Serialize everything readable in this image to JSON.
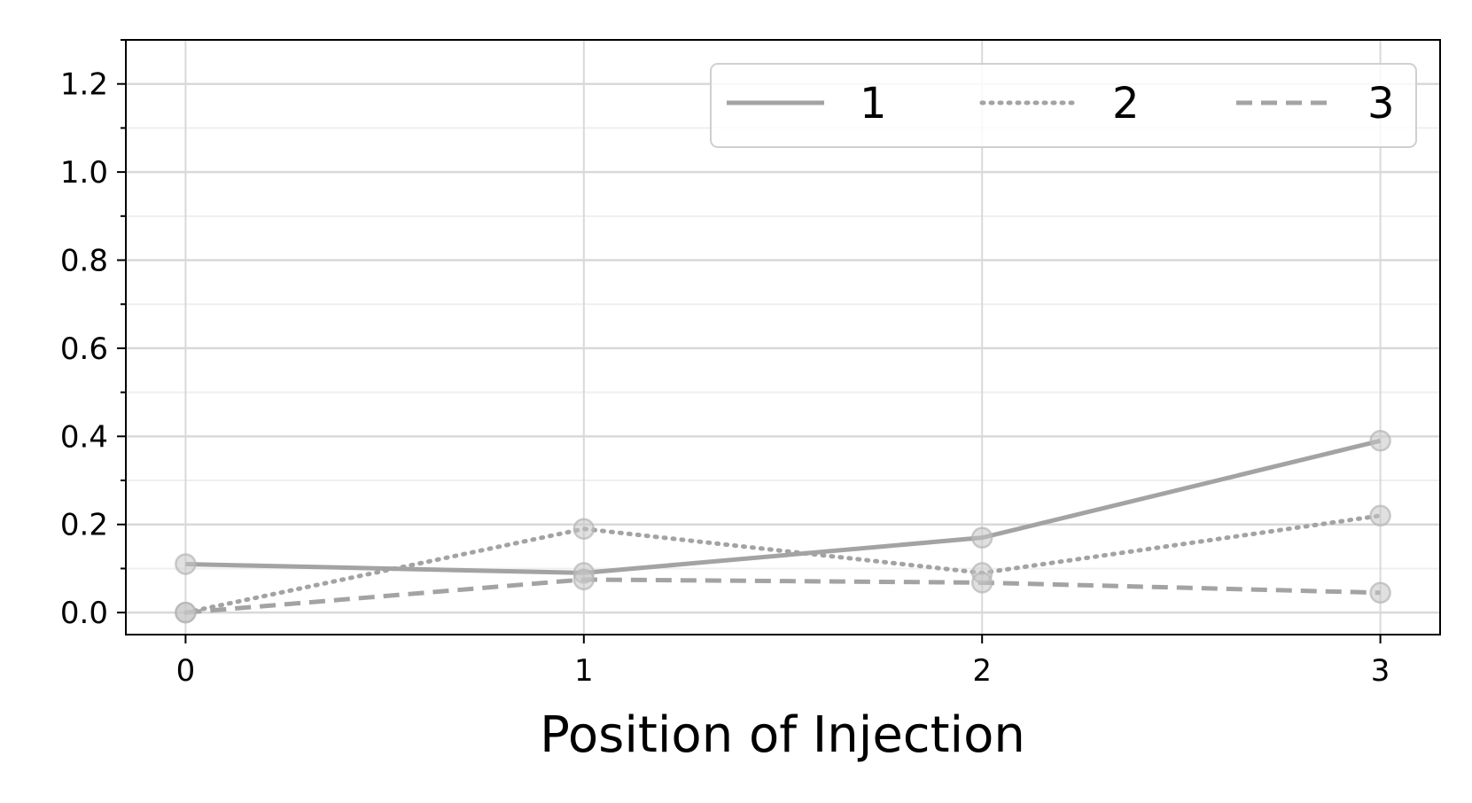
{
  "chart_data": {
    "type": "line",
    "title": "",
    "xlabel": "Position of Injection",
    "ylabel": "",
    "x": [
      0,
      1,
      2,
      3
    ],
    "xticks": [
      "0",
      "1",
      "2",
      "3"
    ],
    "xlim": [
      -0.15,
      3.15
    ],
    "ylim": [
      -0.05,
      1.3
    ],
    "yticks": [
      "0.0",
      "0.2",
      "0.4",
      "0.6",
      "0.8",
      "1.0",
      "1.2"
    ],
    "grid": true,
    "legend_placement": "top-right",
    "series": [
      {
        "name": "1",
        "style": "solid",
        "color": "#a3a3a3",
        "values": [
          0.11,
          0.09,
          0.17,
          0.39
        ]
      },
      {
        "name": "2",
        "style": "dotted",
        "color": "#a3a3a3",
        "values": [
          0.0,
          0.19,
          0.09,
          0.22
        ]
      },
      {
        "name": "3",
        "style": "dashed",
        "color": "#a3a3a3",
        "values": [
          0.0,
          0.075,
          0.068,
          0.045
        ]
      }
    ],
    "colors": {
      "grid": "#d9d9d9",
      "minor_grid": "#efefef",
      "marker": "#c7c7c7",
      "frame": "#000000"
    }
  }
}
